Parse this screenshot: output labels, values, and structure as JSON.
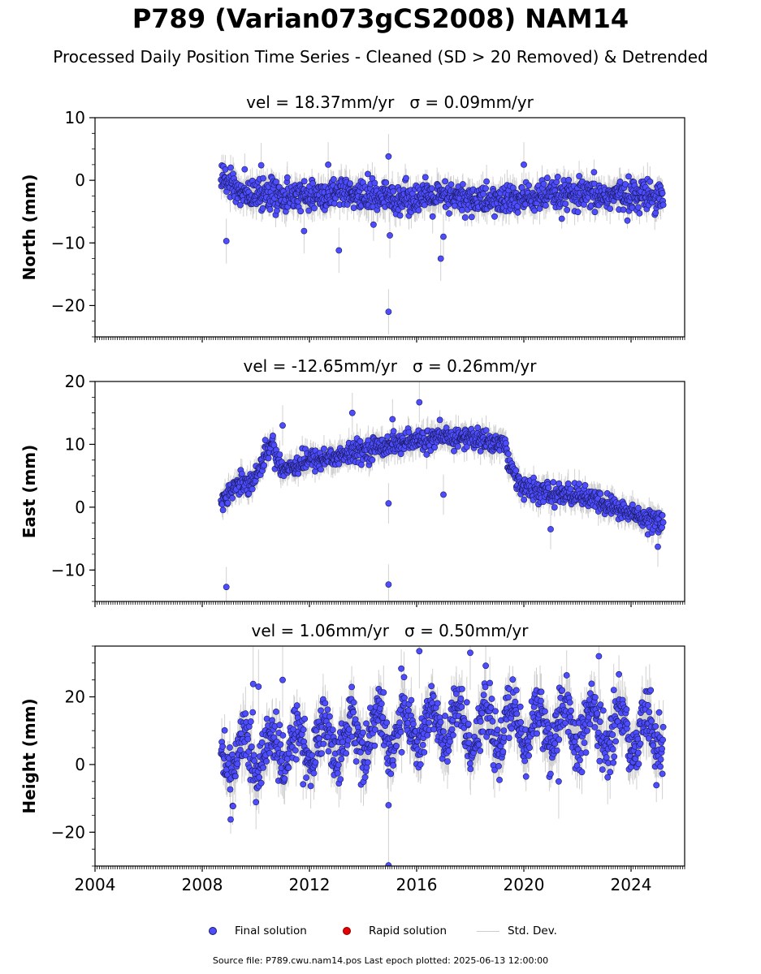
{
  "title": "P789 (Varian073gCS2008) NAM14",
  "subtitle": "Processed Daily Position Time Series - Cleaned (SD > 20 Removed) & Detrended",
  "legend": {
    "final": "Final solution",
    "rapid": "Rapid solution",
    "sd": "Std. Dev."
  },
  "source": "Source file: P789.cwu.nam14.pos  Last epoch plotted: 2025-06-13 12:00:00",
  "colors": {
    "final": "#4d4dff",
    "rapid": "#e60000",
    "sd": "#cccccc",
    "edge": "#1a1a5c"
  },
  "chart_data": [
    {
      "type": "scatter",
      "ylabel": "North (mm)",
      "panel_title": "vel = 18.37mm/yr   σ = 0.09mm/yr",
      "xlim": [
        2004.0,
        2026.0
      ],
      "ylim": [
        -25,
        10
      ],
      "yticks": [
        10,
        0,
        -10,
        -20
      ],
      "xticks": [
        2004,
        2008,
        2012,
        2016,
        2020,
        2024
      ],
      "show_xtick_labels": false,
      "trend": [
        [
          2008.7,
          0.5
        ],
        [
          2009.5,
          -2.0
        ],
        [
          2011.0,
          -2.5
        ],
        [
          2013.0,
          -2.3
        ],
        [
          2015.0,
          -2.8
        ],
        [
          2017.0,
          -2.8
        ],
        [
          2019.0,
          -3.3
        ],
        [
          2021.0,
          -2.5
        ],
        [
          2023.0,
          -2.5
        ],
        [
          2025.2,
          -2.3
        ]
      ],
      "scatter": 2.2,
      "sd_base": 1.8,
      "outliers": [
        [
          2008.9,
          -9.7
        ],
        [
          2013.1,
          -11.2
        ],
        [
          2014.95,
          3.8
        ],
        [
          2014.95,
          -21.0
        ],
        [
          2015.0,
          -8.8
        ],
        [
          2016.9,
          -12.5
        ],
        [
          2017.0,
          -9.0
        ],
        [
          2020.0,
          2.5
        ],
        [
          2010.2,
          2.4
        ],
        [
          2011.8,
          -8.1
        ],
        [
          2012.7,
          2.5
        ]
      ]
    },
    {
      "type": "scatter",
      "ylabel": "East (mm)",
      "panel_title": "vel = -12.65mm/yr   σ = 0.26mm/yr",
      "xlim": [
        2004.0,
        2026.0
      ],
      "ylim": [
        -15,
        20
      ],
      "yticks": [
        20,
        10,
        0,
        -10
      ],
      "xticks": [
        2004,
        2008,
        2012,
        2016,
        2020,
        2024
      ],
      "show_xtick_labels": false,
      "trend": [
        [
          2008.7,
          0.5
        ],
        [
          2009.0,
          2.5
        ],
        [
          2009.5,
          4.0
        ],
        [
          2010.0,
          4.5
        ],
        [
          2010.3,
          8.0
        ],
        [
          2010.6,
          10.0
        ],
        [
          2011.0,
          6.0
        ],
        [
          2012.0,
          7.5
        ],
        [
          2013.0,
          8.0
        ],
        [
          2014.0,
          9.0
        ],
        [
          2015.0,
          10.0
        ],
        [
          2016.0,
          10.5
        ],
        [
          2017.0,
          11.0
        ],
        [
          2018.0,
          11.0
        ],
        [
          2019.3,
          10.0
        ],
        [
          2019.5,
          6.0
        ],
        [
          2020.0,
          3.0
        ],
        [
          2021.0,
          2.0
        ],
        [
          2022.0,
          2.0
        ],
        [
          2023.0,
          0.5
        ],
        [
          2024.0,
          -1.0
        ],
        [
          2025.2,
          -2.5
        ]
      ],
      "scatter": 1.5,
      "sd_base": 1.6,
      "outliers": [
        [
          2008.9,
          -12.7
        ],
        [
          2014.95,
          -12.3
        ],
        [
          2013.6,
          15.0
        ],
        [
          2016.1,
          16.7
        ],
        [
          2014.95,
          0.6
        ],
        [
          2017.0,
          2.0
        ],
        [
          2021.0,
          -3.5
        ],
        [
          2011.0,
          13.0
        ],
        [
          2025.0,
          -6.3
        ],
        [
          2015.1,
          14.0
        ]
      ]
    },
    {
      "type": "scatter",
      "ylabel": "Height (mm)",
      "panel_title": "vel = 1.06mm/yr   σ = 0.50mm/yr",
      "xlim": [
        2004.0,
        2026.0
      ],
      "ylim": [
        -30,
        35
      ],
      "yticks": [
        20,
        0,
        -20
      ],
      "xticks": [
        2004,
        2008,
        2012,
        2016,
        2020,
        2024
      ],
      "show_xtick_labels": true,
      "xtick_labels": [
        "2004",
        "2008",
        "2012",
        "2016",
        "2020",
        "2024"
      ],
      "trend": [
        [
          2008.7,
          2.0
        ],
        [
          2010.0,
          3.0
        ],
        [
          2012.0,
          6.0
        ],
        [
          2014.0,
          9.0
        ],
        [
          2016.0,
          11.0
        ],
        [
          2018.0,
          11.0
        ],
        [
          2020.0,
          11.0
        ],
        [
          2022.0,
          11.0
        ],
        [
          2024.0,
          10.0
        ],
        [
          2025.2,
          10.0
        ]
      ],
      "scatter": 7.5,
      "sd_base": 5.5,
      "seasonal": 6.0,
      "outliers": [
        [
          2014.95,
          -29.8
        ],
        [
          2014.95,
          -12.0
        ],
        [
          2016.1,
          33.5
        ],
        [
          2022.8,
          32.0
        ],
        [
          2018.0,
          33.0
        ],
        [
          2021.3,
          -5.0
        ],
        [
          2009.9,
          23.8
        ],
        [
          2010.1,
          23.0
        ],
        [
          2011.0,
          25.0
        ]
      ]
    }
  ]
}
